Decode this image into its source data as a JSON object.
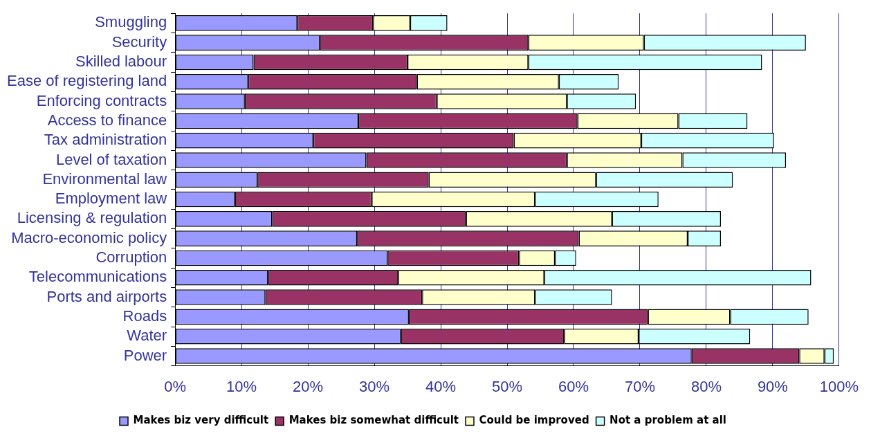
{
  "chart_data": {
    "type": "bar",
    "orientation": "horizontal",
    "stacked": true,
    "categories": [
      "Smuggling",
      "Security",
      "Skilled labour",
      "Ease of registering land",
      "Enforcing contracts",
      "Access to finance",
      "Tax administration",
      "Level of taxation",
      "Environmental law",
      "Employment law",
      "Licensing & regulation",
      "Macro-economic policy",
      "Corruption",
      "Telecommunications",
      "Ports and airports",
      "Roads",
      "Water",
      "Power"
    ],
    "series": [
      {
        "name": "Makes biz very difficult",
        "color": "#9999ff",
        "values": [
          18.4,
          21.8,
          11.8,
          11.0,
          10.5,
          27.6,
          20.8,
          28.8,
          12.4,
          9.0,
          14.6,
          27.4,
          32.0,
          14.0,
          13.6,
          35.2,
          34.0,
          77.8
        ]
      },
      {
        "name": "Makes biz somewhat difficult",
        "color": "#993366",
        "values": [
          11.4,
          31.4,
          23.2,
          25.4,
          28.9,
          33.0,
          30.2,
          30.2,
          25.8,
          20.6,
          29.2,
          33.4,
          19.8,
          19.6,
          23.6,
          36.0,
          24.6,
          16.2
        ]
      },
      {
        "name": "Could be improved",
        "color": "#ffffcc",
        "values": [
          5.6,
          17.4,
          18.2,
          21.4,
          19.6,
          15.2,
          19.2,
          17.4,
          25.2,
          24.6,
          22.0,
          16.4,
          5.4,
          22.0,
          17.0,
          12.4,
          11.2,
          3.8
        ]
      },
      {
        "name": "Not a problem at all",
        "color": "#ccffff",
        "values": [
          5.6,
          24.4,
          35.2,
          9.0,
          10.4,
          10.4,
          20.0,
          15.6,
          20.6,
          18.6,
          16.4,
          5.0,
          3.2,
          40.2,
          11.6,
          11.8,
          16.8,
          1.4
        ]
      }
    ],
    "xlim": [
      0,
      100
    ],
    "xticks": [
      {
        "value": 0,
        "label": "0%"
      },
      {
        "value": 10,
        "label": "10%"
      },
      {
        "value": 20,
        "label": "20%"
      },
      {
        "value": 30,
        "label": "30%"
      },
      {
        "value": 40,
        "label": "40%"
      },
      {
        "value": 50,
        "label": "50%"
      },
      {
        "value": 60,
        "label": "60%"
      },
      {
        "value": 70,
        "label": "70%"
      },
      {
        "value": 80,
        "label": "80%"
      },
      {
        "value": 90,
        "label": "90%"
      },
      {
        "value": 100,
        "label": "100%"
      }
    ],
    "grid": "x",
    "legend": "bottom"
  }
}
